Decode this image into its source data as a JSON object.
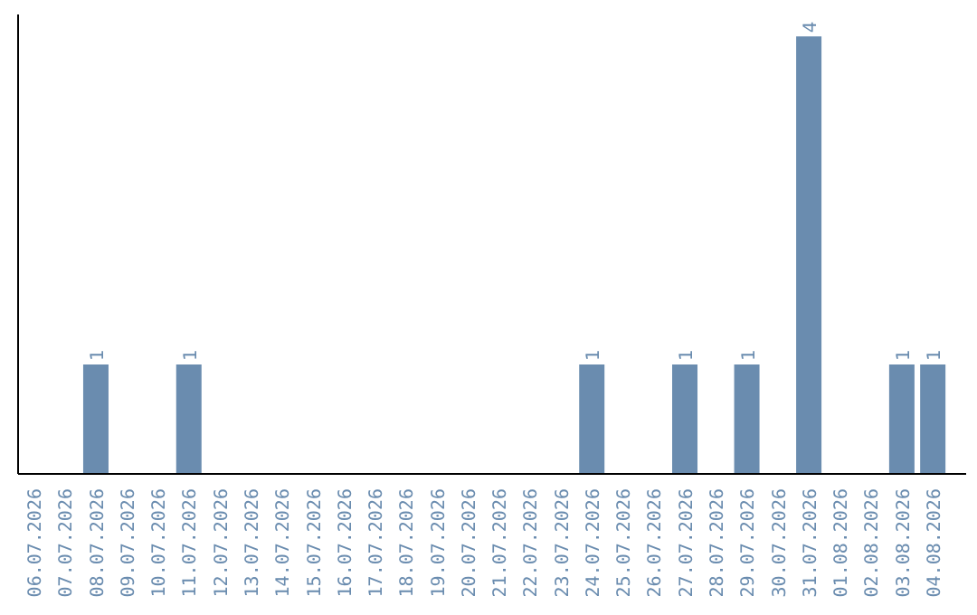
{
  "chart_data": {
    "type": "bar",
    "categories": [
      "06.07.2026",
      "07.07.2026",
      "08.07.2026",
      "09.07.2026",
      "10.07.2026",
      "11.07.2026",
      "12.07.2026",
      "13.07.2026",
      "14.07.2026",
      "15.07.2026",
      "16.07.2026",
      "17.07.2026",
      "18.07.2026",
      "19.07.2026",
      "20.07.2026",
      "21.07.2026",
      "22.07.2026",
      "23.07.2026",
      "24.07.2026",
      "25.07.2026",
      "26.07.2026",
      "27.07.2026",
      "28.07.2026",
      "29.07.2026",
      "30.07.2026",
      "31.07.2026",
      "01.08.2026",
      "02.08.2026",
      "03.08.2026",
      "04.08.2026"
    ],
    "values": [
      0,
      0,
      1,
      0,
      0,
      1,
      0,
      0,
      0,
      0,
      0,
      0,
      0,
      0,
      0,
      0,
      0,
      0,
      1,
      0,
      0,
      1,
      0,
      1,
      0,
      4,
      0,
      0,
      1,
      1
    ],
    "value_labels": [
      null,
      null,
      "1",
      null,
      null,
      "1",
      null,
      null,
      null,
      null,
      null,
      null,
      null,
      null,
      null,
      null,
      null,
      null,
      "1",
      null,
      null,
      "1",
      null,
      "1",
      null,
      "4",
      null,
      null,
      "1",
      "1"
    ],
    "color": "#6a8caf",
    "grid": false,
    "legend": false
  }
}
